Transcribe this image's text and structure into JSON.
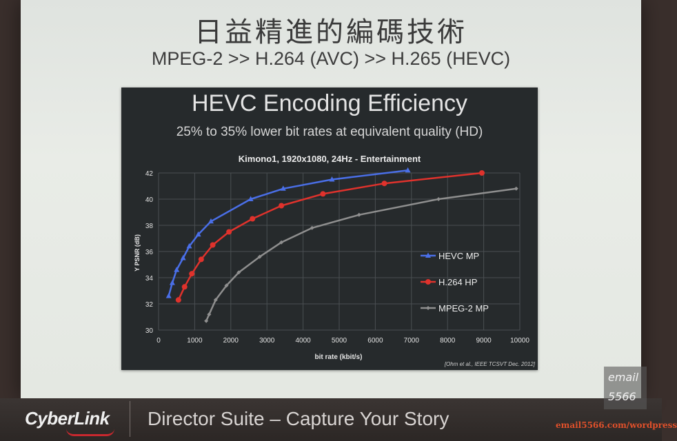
{
  "slide": {
    "title": "日益精進的編碼技術",
    "subtitle": "MPEG-2 >> H.264 (AVC) >> H.265 (HEVC)"
  },
  "panel": {
    "heading": "HEVC Encoding Efficiency",
    "subheading": "25% to 35% lower bit rates at equivalent quality (HD)",
    "citation": "[Ohm et al., IEEE TCSVT Dec. 2012]"
  },
  "chart_data": {
    "type": "line",
    "title": "Kimono1, 1920x1080, 24Hz - Entertainment",
    "xlabel": "bit rate (kbit/s)",
    "ylabel": "Y PSNR (dB)",
    "xlim": [
      0,
      10000
    ],
    "ylim": [
      30,
      42
    ],
    "xticks": [
      0,
      1000,
      2000,
      3000,
      4000,
      5000,
      6000,
      7000,
      8000,
      9000,
      10000
    ],
    "yticks": [
      30,
      32,
      34,
      36,
      38,
      40,
      42
    ],
    "grid": true,
    "legend_position": "right",
    "series": [
      {
        "name": "HEVC MP",
        "color": "#4a6fe8",
        "marker": "triangle",
        "points": [
          [
            280,
            32.6
          ],
          [
            380,
            33.6
          ],
          [
            500,
            34.6
          ],
          [
            680,
            35.5
          ],
          [
            850,
            36.4
          ],
          [
            1100,
            37.3
          ],
          [
            1450,
            38.3
          ],
          [
            2550,
            40.0
          ],
          [
            3450,
            40.8
          ],
          [
            4800,
            41.5
          ],
          [
            6900,
            42.2
          ]
        ]
      },
      {
        "name": "H.264 HP",
        "color": "#e0322c",
        "marker": "circle",
        "points": [
          [
            550,
            32.3
          ],
          [
            720,
            33.3
          ],
          [
            920,
            34.3
          ],
          [
            1180,
            35.4
          ],
          [
            1500,
            36.5
          ],
          [
            1950,
            37.5
          ],
          [
            2600,
            38.5
          ],
          [
            3400,
            39.5
          ],
          [
            4550,
            40.4
          ],
          [
            6250,
            41.2
          ],
          [
            8950,
            42.0
          ]
        ]
      },
      {
        "name": "MPEG-2 MP",
        "color": "#8f8f8f",
        "marker": "diamond",
        "points": [
          [
            1320,
            30.7
          ],
          [
            1400,
            31.2
          ],
          [
            1580,
            32.3
          ],
          [
            1880,
            33.4
          ],
          [
            2220,
            34.4
          ],
          [
            2800,
            35.6
          ],
          [
            3400,
            36.7
          ],
          [
            4250,
            37.8
          ],
          [
            5550,
            38.8
          ],
          [
            7750,
            40.0
          ],
          [
            9900,
            40.8
          ]
        ]
      }
    ]
  },
  "footer": {
    "brand": "CyberLink",
    "tagline": "Director Suite – Capture Your Story"
  },
  "watermark": {
    "line1": "email",
    "line2": "5566",
    "url": "email5566.com/wordpress"
  }
}
